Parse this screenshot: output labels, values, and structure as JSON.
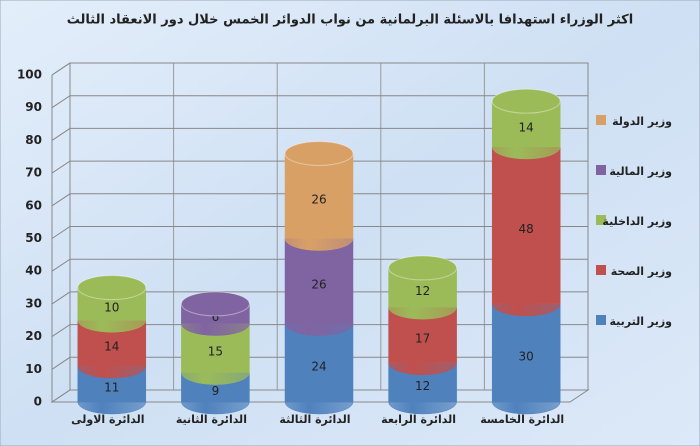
{
  "chart_data": {
    "type": "stacked_bar_3d",
    "title": "اكثر الوزراء استهدافا بالاسئلة البرلمانية من نواب الدوائر الخمس خلال دور الانعقاد الثالث",
    "categories": [
      "الدائرة الاولى",
      "الدائرة الثانية",
      "الدائرة الثالثة",
      "الدائرة الرابعة",
      "الدائرة الخامسة"
    ],
    "series": [
      {
        "name": "وزير التربية",
        "color": "#4f81bd",
        "values": [
          11,
          9,
          24,
          12,
          30
        ]
      },
      {
        "name": "وزير الصحة",
        "color": "#c0504d",
        "values": [
          14,
          null,
          null,
          17,
          48
        ]
      },
      {
        "name": "وزير الداخلية",
        "color": "#9bbb59",
        "values": [
          10,
          15,
          null,
          12,
          14
        ]
      },
      {
        "name": "وزير المالية",
        "color": "#8064a2",
        "values": [
          null,
          6,
          26,
          null,
          null
        ]
      },
      {
        "name": "وزير الدولة",
        "color": "#d9a066",
        "values": [
          null,
          null,
          26,
          null,
          null
        ]
      }
    ],
    "ylim": [
      0,
      100
    ],
    "yticks": [
      0,
      10,
      20,
      30,
      40,
      50,
      60,
      70,
      80,
      90,
      100
    ],
    "grid": true,
    "legend": "right"
  }
}
